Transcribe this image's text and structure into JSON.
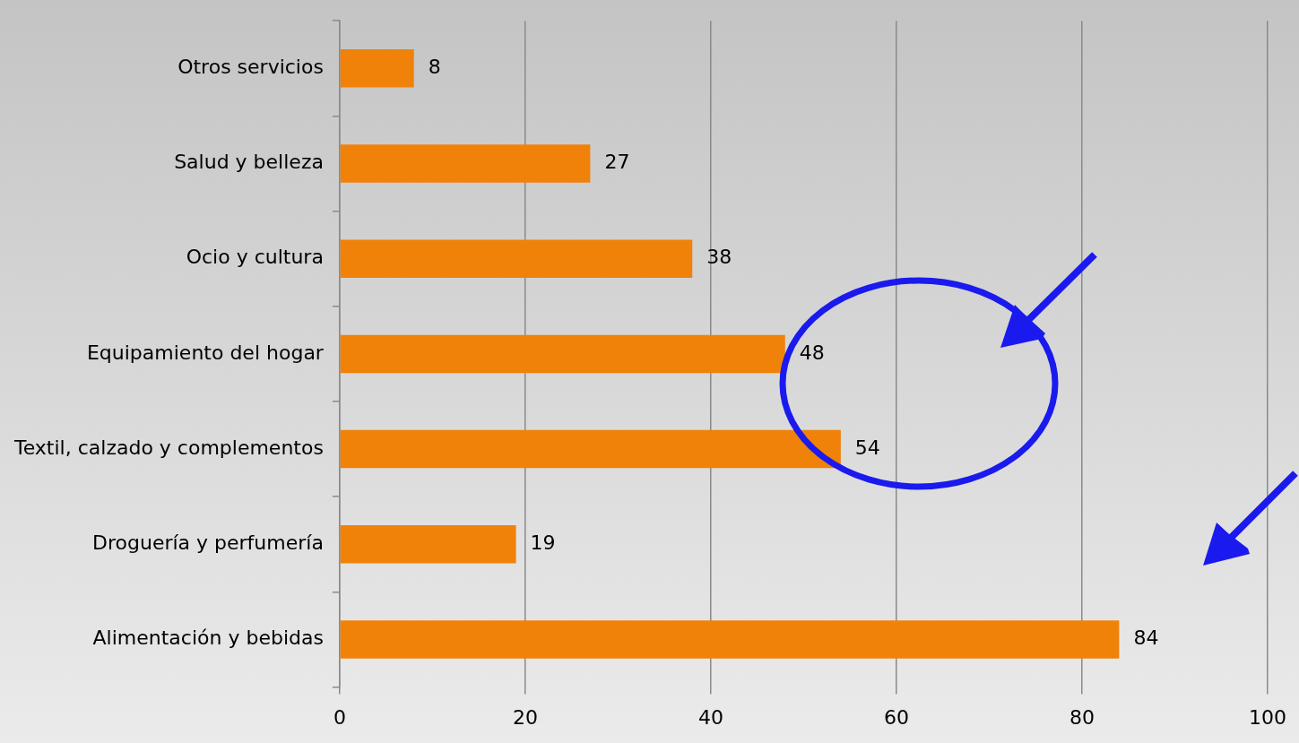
{
  "chart_data": {
    "type": "bar",
    "orientation": "horizontal",
    "categories": [
      "Otros servicios",
      "Salud y belleza",
      "Ocio y cultura",
      "Equipamiento del hogar",
      "Textil, calzado y complementos",
      "Droguería y perfumería",
      "Alimentación y bebidas"
    ],
    "values": [
      8,
      27,
      38,
      48,
      54,
      19,
      84
    ],
    "color": "#f0820a",
    "xlim": [
      0,
      100
    ],
    "xticks": [
      0,
      20,
      40,
      60,
      80,
      100
    ],
    "grid": "x",
    "legend": false,
    "data_labels": true
  }
}
